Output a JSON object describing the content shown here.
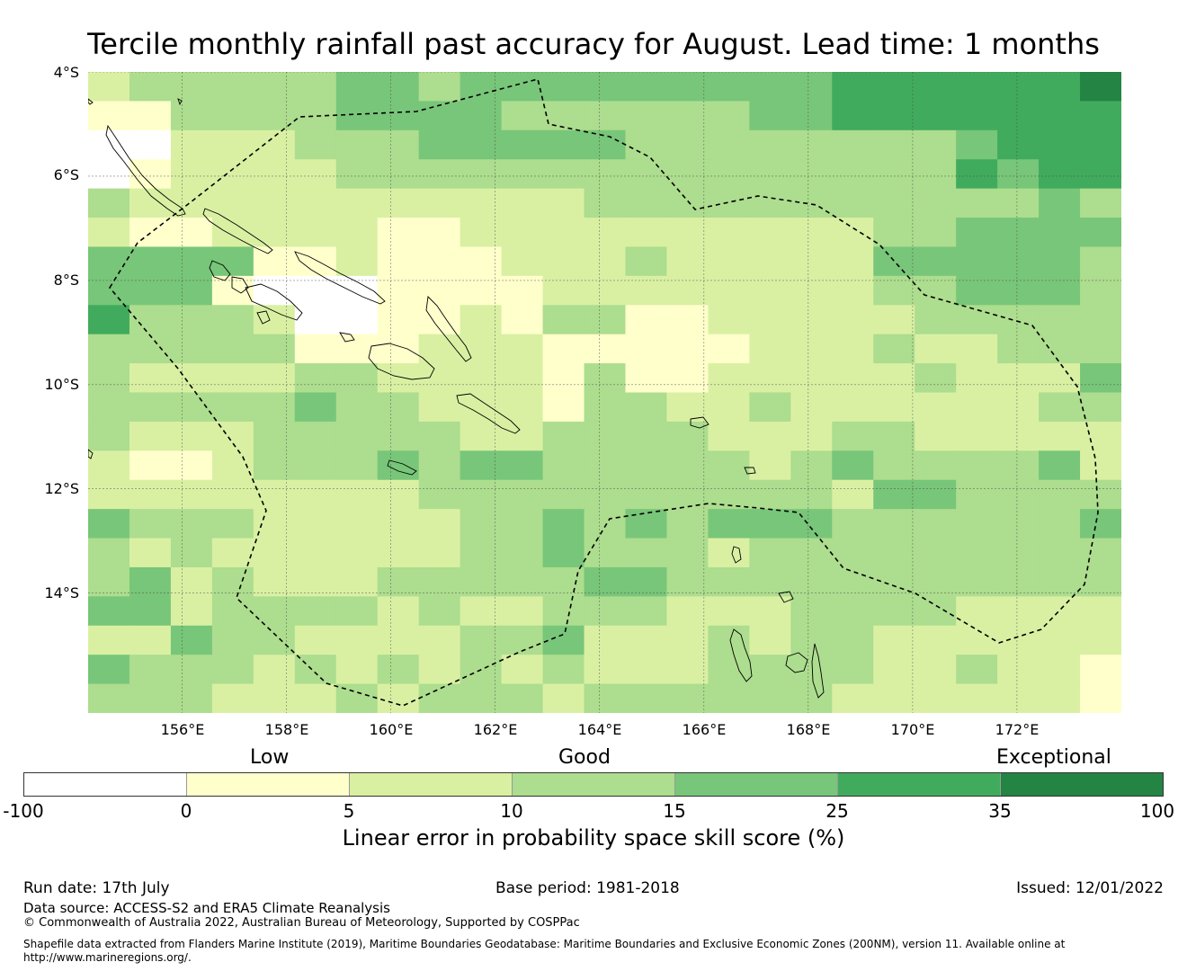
{
  "title": "Tercile monthly rainfall past accuracy for August. Lead time: 1 months",
  "map": {
    "lat_labels": [
      "4°S",
      "6°S",
      "8°S",
      "10°S",
      "12°S",
      "14°S"
    ],
    "lon_labels": [
      "156°E",
      "158°E",
      "160°E",
      "162°E",
      "164°E",
      "166°E",
      "168°E",
      "170°E",
      "172°E"
    ],
    "extent": {
      "lon_min": 154.2,
      "lon_max": 174.0,
      "lat_min": -16.3,
      "lat_max": -4.0
    },
    "grid_cell_size_deg": 0.83,
    "skill_grid_class_rows": [
      "2333334434444444445555556",
      "1133334444333333445555555",
      "0022233344444333333334555",
      "0122223333333333333335455",
      "3222222222223333333333343",
      "2112222112222222222334444",
      "4444112111222322222444443",
      "4441000111122222222334443",
      "5333200112133112222233333",
      "3333311122211111222322333",
      "3222233222213112222232224",
      "3333343322213322322222233",
      "3222333332233332223322222",
      "2112333434433333234333342",
      "2222222233333333332443333",
      "4333222223343434443333334",
      "3232222223343332333333333",
      "3423222333334433333333333",
      "4423333232233322233332222",
      "2243322223342223233222222",
      "4333232323232223333223221",
      "3332223233323333332222221"
    ],
    "colors": {
      "eez_line": "#000000",
      "coastline": "#000000",
      "gridline": "#444444"
    }
  },
  "legend": {
    "category_labels": [
      "Low",
      "Good",
      "Exceptional"
    ],
    "tick_labels": [
      "-100",
      "0",
      "5",
      "10",
      "15",
      "25",
      "35",
      "100"
    ],
    "class_colors": [
      "#ffffff",
      "#ffffcc",
      "#d9f0a3",
      "#addd8e",
      "#78c679",
      "#41ab5d",
      "#238443"
    ],
    "title": "Linear error in probability space skill score (%)"
  },
  "footer": {
    "run_date": "Run date: 17th July",
    "base_period": "Base period: 1981-2018",
    "issued": "Issued: 12/01/2022",
    "data_source": "Data source: ACCESS-S2 and ERA5 Climate Reanalysis",
    "copyright": "© Commonwealth of Australia 2022, Australian Bureau of Meteorology, Supported by COSPPac",
    "shapefile_line1": "Shapefile data extracted from Flanders Marine Institute (2019), Maritime Boundaries Geodatabase: Maritime Boundaries and Exclusive Economic Zones (200NM), version 11. Available online at",
    "shapefile_line2": "http://www.marineregions.org/."
  }
}
